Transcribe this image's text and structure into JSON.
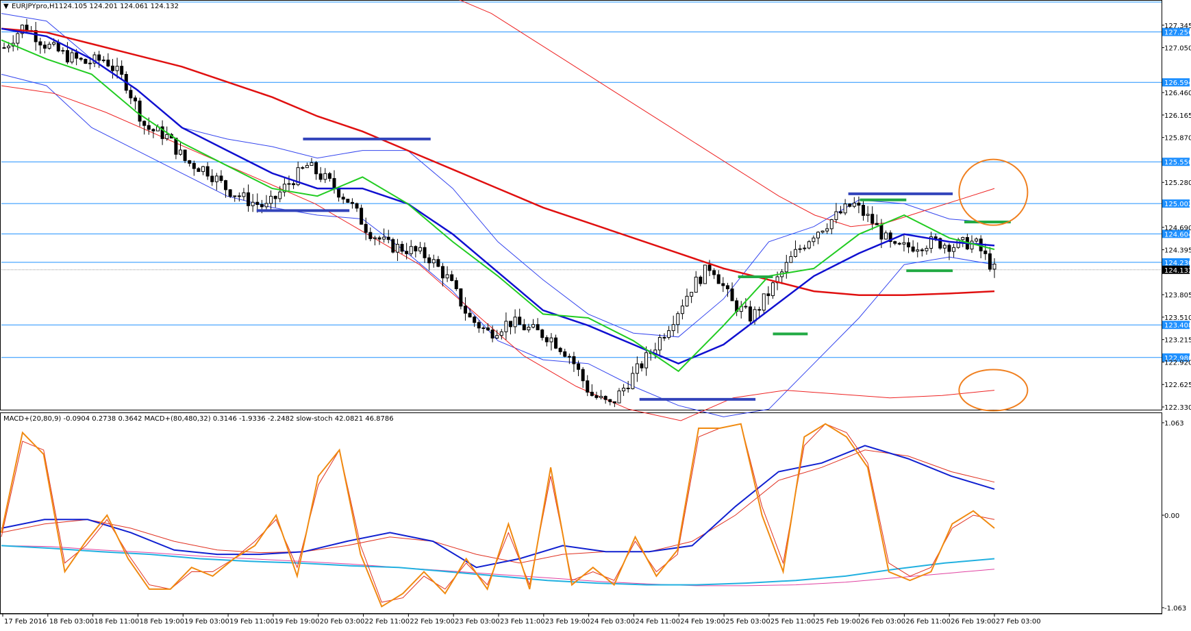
{
  "header": {
    "symbol": "EURJPYpro,H1",
    "ohlc": "124.105 124.201 124.061 124.132"
  },
  "indicator_header": {
    "text": "MACD+(20,80,9) -0.0904 0.2738 0.3642  MACD+(80,480,32) 0.3146 -1.9336 -2.2482  slow-stoch 42.0821 46.8786"
  },
  "colors": {
    "level_line": "#1e90ff",
    "level_label_bg": "#1e90ff",
    "current_label_bg": "#000000",
    "ma_red": "#e01010",
    "ma_blue": "#1010d0",
    "ma_green": "#22cc22",
    "band_blue": "#3344ee",
    "band_red": "#ee2222",
    "annotation_blue": "#3344bb",
    "annotation_green": "#22aa44",
    "circle_orange": "#f08020",
    "stoch_orange": "#f08a10",
    "macd_blue": "#1020d0",
    "signal_red": "#e03020",
    "slow_cyan": "#20b0e0",
    "slow_magenta": "#e040a0",
    "slow_purple": "#6030a0"
  },
  "chart_data": [
    {
      "type": "candlestick",
      "symbol": "EURJPYpro,H1",
      "ylim": [
        122.33,
        127.64
      ],
      "price_ticks": [
        "127.345",
        "127.050",
        "126.460",
        "126.165",
        "125.870",
        "125.280",
        "124.690",
        "124.395",
        "123.805",
        "123.510",
        "123.215",
        "122.920",
        "122.625",
        "122.330"
      ],
      "levels": [
        "127.256",
        "126.594",
        "125.550",
        "125.002",
        "124.604",
        "124.230",
        "123.408",
        "122.980"
      ],
      "current_price": "124.132",
      "time_labels": [
        "17 Feb 2016",
        "18 Feb 03:00",
        "18 Feb 11:00",
        "18 Feb 19:00",
        "19 Feb 03:00",
        "19 Feb 11:00",
        "19 Feb 19:00",
        "20 Feb 03:00",
        "22 Feb 11:00",
        "22 Feb 19:00",
        "23 Feb 03:00",
        "23 Feb 11:00",
        "23 Feb 19:00",
        "24 Feb 03:00",
        "24 Feb 11:00",
        "24 Feb 19:00",
        "25 Feb 03:00",
        "25 Feb 11:00",
        "25 Feb 19:00",
        "26 Feb 03:00",
        "26 Feb 11:00",
        "26 Feb 19:00",
        "27 Feb 03:00"
      ],
      "close_path": [
        127.05,
        127.35,
        127.1,
        126.95,
        126.85,
        126.9,
        126.6,
        126.0,
        125.9,
        125.55,
        125.45,
        125.2,
        125.05,
        124.95,
        125.25,
        125.5,
        125.3,
        125.05,
        124.65,
        124.45,
        124.4,
        124.3,
        124.0,
        123.5,
        123.3,
        123.45,
        123.35,
        123.25,
        123.0,
        122.5,
        122.35,
        122.7,
        123.05,
        123.45,
        123.9,
        124.2,
        123.7,
        123.5,
        123.9,
        124.3,
        124.6,
        124.8,
        125.0,
        124.75,
        124.4,
        124.45,
        124.5,
        124.45,
        124.5,
        124.13
      ],
      "ma_red_path": [
        127.3,
        127.25,
        127.1,
        126.95,
        126.8,
        126.6,
        126.4,
        126.15,
        125.95,
        125.7,
        125.45,
        125.2,
        124.95,
        124.75,
        124.55,
        124.35,
        124.15,
        124.0,
        123.85,
        123.8,
        123.8,
        123.82,
        123.85
      ],
      "ma_blue_path": [
        127.3,
        127.2,
        126.9,
        126.5,
        126.0,
        125.7,
        125.4,
        125.2,
        125.2,
        125.0,
        124.6,
        124.1,
        123.6,
        123.4,
        123.15,
        122.9,
        123.15,
        123.6,
        124.05,
        124.35,
        124.6,
        124.5,
        124.45
      ],
      "ma_green_path": [
        127.15,
        126.9,
        126.7,
        126.2,
        125.8,
        125.5,
        125.2,
        125.1,
        125.35,
        125.0,
        124.5,
        124.05,
        123.55,
        123.5,
        123.2,
        122.8,
        123.4,
        124.05,
        124.15,
        124.6,
        124.85,
        124.55,
        124.4
      ],
      "band_blue_upper_path": [
        127.5,
        127.4,
        126.9,
        126.5,
        126.0,
        125.85,
        125.75,
        125.6,
        125.7,
        125.7,
        125.2,
        124.5,
        124.0,
        123.55,
        123.3,
        123.25,
        123.75,
        124.5,
        124.7,
        125.05,
        125.0,
        124.8,
        124.75
      ],
      "band_blue_lower_path": [
        126.7,
        126.55,
        126.0,
        125.7,
        125.4,
        125.1,
        124.95,
        124.85,
        124.8,
        124.35,
        123.85,
        123.2,
        122.95,
        122.9,
        122.6,
        122.35,
        122.2,
        122.3,
        122.9,
        123.5,
        124.2,
        124.3,
        124.2
      ],
      "ma_red_thin_upper_path": [
        127.9,
        127.8,
        127.7,
        127.5,
        127.2,
        126.9,
        126.6,
        126.3,
        126.0,
        125.7,
        125.4,
        125.1,
        124.85,
        124.7,
        124.75,
        124.9,
        125.05,
        125.2
      ],
      "ma_red_thin_lower_path": [
        126.55,
        126.45,
        126.2,
        125.9,
        125.6,
        125.3,
        125.0,
        124.6,
        124.2,
        123.6,
        123.0,
        122.6,
        122.3,
        122.15,
        122.45,
        122.55,
        122.5,
        122.45,
        122.48,
        122.55
      ],
      "annotations": {
        "blue_segments": [
          {
            "price": 125.85,
            "from": 0.26,
            "to": 0.37
          },
          {
            "price": 124.91,
            "from": 0.22,
            "to": 0.3
          },
          {
            "price": 125.13,
            "from": 0.73,
            "to": 0.82
          },
          {
            "price": 122.43,
            "from": 0.55,
            "to": 0.65
          }
        ],
        "green_segments": [
          {
            "price": 124.04,
            "from": 0.635,
            "to": 0.665
          },
          {
            "price": 123.29,
            "from": 0.665,
            "to": 0.695
          },
          {
            "price": 125.05,
            "from": 0.74,
            "to": 0.78
          },
          {
            "price": 124.12,
            "from": 0.78,
            "to": 0.82
          },
          {
            "price": 124.76,
            "from": 0.83,
            "to": 0.87
          }
        ],
        "orange_circles": [
          {
            "price": 125.15,
            "pos": 0.855
          },
          {
            "price": 122.55,
            "pos": 0.855
          }
        ]
      }
    },
    {
      "type": "line",
      "name": "MACD+ / slow-stoch",
      "ylim": [
        -1.063,
        1.063
      ],
      "y_ticks": [
        "1.063",
        "0.00",
        "-1.063"
      ],
      "stoch_path": [
        -0.2,
        0.95,
        0.7,
        -0.65,
        -0.3,
        -0.0,
        -0.5,
        -0.85,
        -0.85,
        -0.6,
        -0.7,
        -0.5,
        -0.35,
        0.0,
        -0.7,
        0.45,
        0.75,
        -0.45,
        -1.05,
        -0.9,
        -0.65,
        -0.9,
        -0.5,
        -0.85,
        -0.1,
        -0.85,
        0.55,
        -0.8,
        -0.6,
        -0.8,
        -0.25,
        -0.7,
        -0.4,
        1.0,
        1.0,
        1.05,
        0.0,
        -0.65,
        0.9,
        1.05,
        0.9,
        0.55,
        -0.65,
        -0.75,
        -0.65,
        -0.1,
        0.05,
        -0.15
      ],
      "stoch_signal_path": [
        -0.25,
        0.85,
        0.75,
        -0.55,
        -0.35,
        -0.05,
        -0.45,
        -0.8,
        -0.85,
        -0.65,
        -0.65,
        -0.5,
        -0.3,
        -0.05,
        -0.6,
        0.35,
        0.75,
        -0.35,
        -1.0,
        -0.95,
        -0.7,
        -0.85,
        -0.55,
        -0.8,
        -0.2,
        -0.8,
        0.45,
        -0.75,
        -0.65,
        -0.75,
        -0.3,
        -0.65,
        -0.45,
        0.9,
        1.0,
        1.05,
        0.1,
        -0.55,
        0.8,
        1.05,
        0.95,
        0.6,
        -0.55,
        -0.7,
        -0.6,
        -0.15,
        0.0,
        -0.05
      ],
      "macd_fast_path": [
        -0.15,
        -0.05,
        -0.05,
        -0.2,
        -0.4,
        -0.45,
        -0.45,
        -0.42,
        -0.3,
        -0.2,
        -0.3,
        -0.6,
        -0.5,
        -0.35,
        -0.42,
        -0.42,
        -0.35,
        0.1,
        0.5,
        0.6,
        0.8,
        0.65,
        0.45,
        0.3
      ],
      "macd_signal_path": [
        -0.2,
        -0.1,
        -0.05,
        -0.15,
        -0.3,
        -0.4,
        -0.43,
        -0.42,
        -0.35,
        -0.25,
        -0.3,
        -0.45,
        -0.55,
        -0.45,
        -0.42,
        -0.42,
        -0.3,
        0.0,
        0.4,
        0.55,
        0.75,
        0.68,
        0.5,
        0.38
      ],
      "macd_slow_path": [
        -0.35,
        -0.38,
        -0.42,
        -0.45,
        -0.5,
        -0.53,
        -0.55,
        -0.58,
        -0.6,
        -0.65,
        -0.7,
        -0.75,
        -0.78,
        -0.8,
        -0.8,
        -0.78,
        -0.75,
        -0.7,
        -0.62,
        -0.55,
        -0.5
      ],
      "macd_slow_signal_path": [
        -0.35,
        -0.36,
        -0.4,
        -0.43,
        -0.47,
        -0.5,
        -0.53,
        -0.56,
        -0.6,
        -0.64,
        -0.68,
        -0.72,
        -0.76,
        -0.79,
        -0.81,
        -0.81,
        -0.8,
        -0.77,
        -0.72,
        -0.67,
        -0.62
      ]
    }
  ]
}
